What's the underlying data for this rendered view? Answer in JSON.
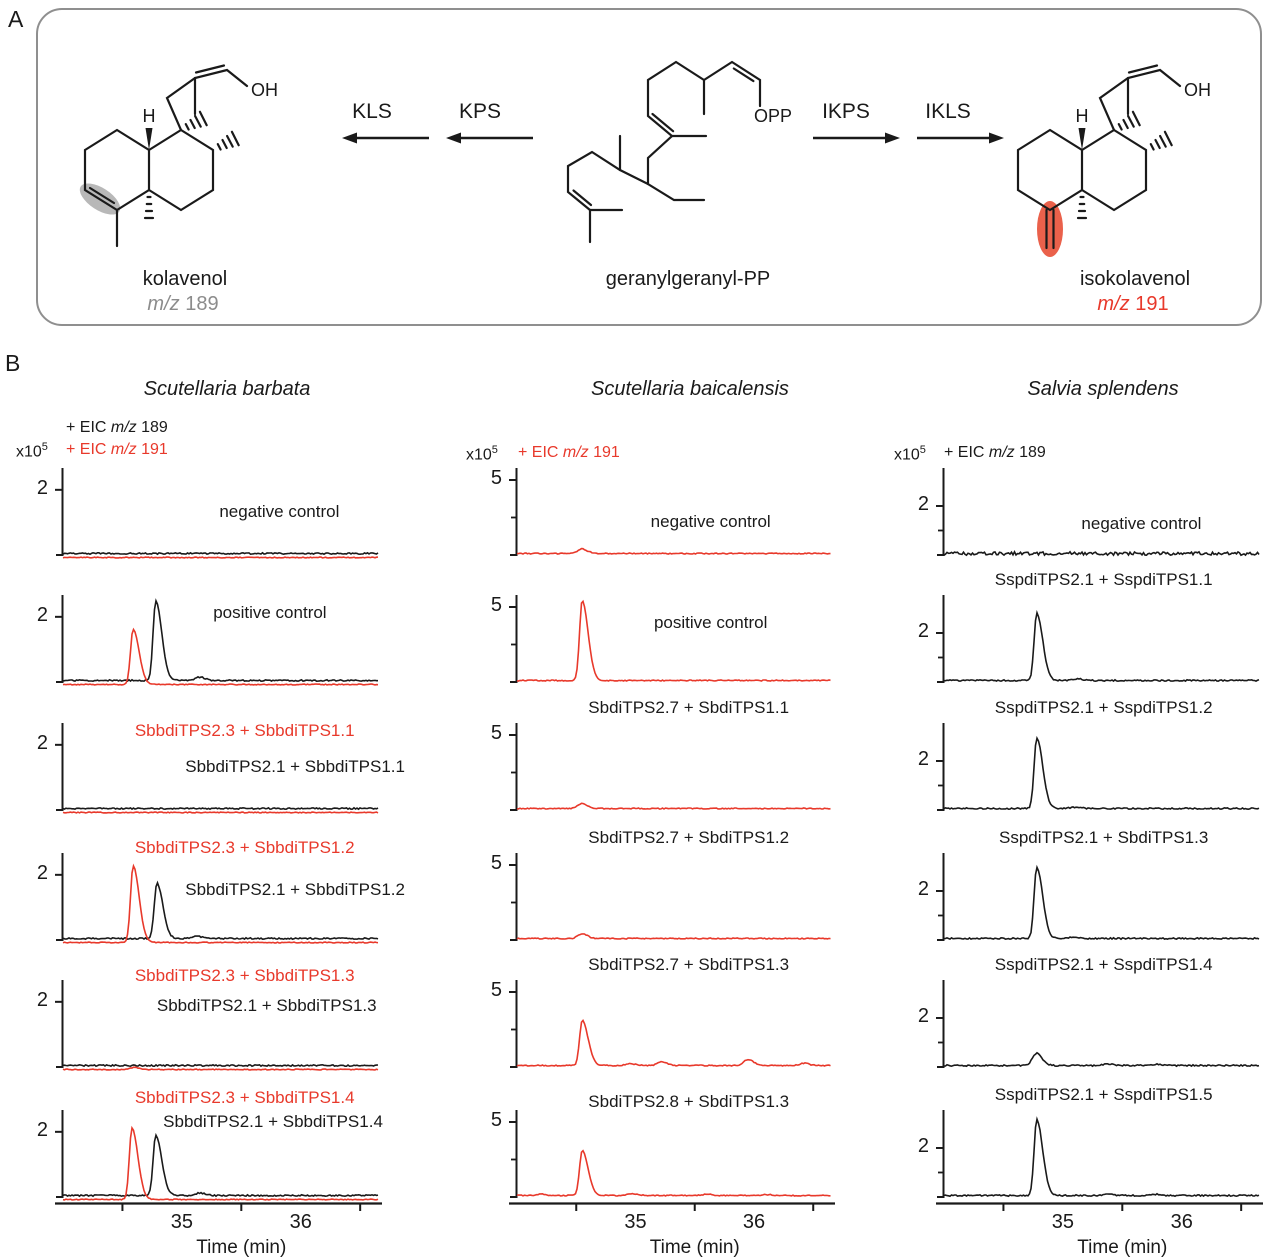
{
  "figure": {
    "panel_a_letter": "A",
    "panel_b_letter": "B"
  },
  "colors": {
    "red": "#e8392b",
    "black": "#1a1a1a",
    "gray_text": "#8c8c8c",
    "highlight_red": "#e8543c",
    "highlight_gray": "#b0b0b0",
    "box_border": "#8f8f8f"
  },
  "scheme": {
    "arrows": [
      {
        "label": "KLS",
        "dir": "left"
      },
      {
        "label": "KPS",
        "dir": "left"
      },
      {
        "label": "IKPS",
        "dir": "right"
      },
      {
        "label": "IKLS",
        "dir": "right"
      }
    ],
    "kolavenol": {
      "name": "kolavenol",
      "mz_prefix": "m/z",
      "mz_value": "189",
      "h_label": "H",
      "oh_label": "OH"
    },
    "ggpp": {
      "name": "geranylgeranyl-PP",
      "opp_label": "OPP"
    },
    "isokolavenol": {
      "name": "isokolavenol",
      "mz_prefix": "m/z",
      "mz_value": "191",
      "h_label": "H",
      "oh_label": "OH"
    }
  },
  "chart_data": {
    "type": "line",
    "xlabel": "Time (min)",
    "x_range": [
      34.0,
      36.65
    ],
    "xticks": [
      35,
      36
    ],
    "minor_xticks": [
      34.5,
      35.5,
      36.5
    ],
    "y_unit_note": "intensity x10^5",
    "columns": [
      {
        "species": "Scutellaria barbata",
        "scale": {
          "base": "x10",
          "exp": "5"
        },
        "legend": [
          {
            "pre": "+ EIC ",
            "mid": "m/z",
            "num": " 189",
            "color": "black"
          },
          {
            "pre": "+ EIC ",
            "mid": "m/z",
            "num": " 191",
            "color": "red"
          }
        ],
        "ymax": 2.67,
        "yticks": [
          {
            "value": 2,
            "label": "2"
          }
        ],
        "minor_yticks": [],
        "panels": [
          {
            "labels": [
              {
                "text": "negative control",
                "color": "black",
                "cx": 0.69,
                "dy": 34
              }
            ],
            "traces": [
              {
                "color": "black",
                "noise": 0.7,
                "peaks": []
              },
              {
                "color": "red",
                "noise": 0.45,
                "offset": 4,
                "peaks": []
              }
            ]
          },
          {
            "labels": [
              {
                "text": "positive control",
                "color": "black",
                "cx": 0.66,
                "dy": 8
              }
            ],
            "traces": [
              {
                "color": "black",
                "noise": 0.7,
                "peaks": [
                  [
                    34.78,
                    2.45
                  ],
                  [
                    35.15,
                    0.1
                  ]
                ]
              },
              {
                "color": "red",
                "noise": 0.45,
                "offset": 4,
                "peaks": [
                  [
                    34.59,
                    1.7
                  ]
                ]
              }
            ]
          },
          {
            "labels": [
              {
                "text": "SbbdiTPS2.3 + SbbdiTPS1.1",
                "color": "red",
                "cx": 0.58,
                "dy": -2
              },
              {
                "text": "SbbdiTPS2.1 + SbbdiTPS1.1",
                "color": "black",
                "cx": 0.74,
                "dy": 34
              }
            ],
            "traces": [
              {
                "color": "black",
                "noise": 0.7,
                "peaks": []
              },
              {
                "color": "red",
                "noise": 0.45,
                "offset": 4,
                "peaks": []
              }
            ]
          },
          {
            "labels": [
              {
                "text": "SbbdiTPS2.3 + SbbdiTPS1.2",
                "color": "red",
                "cx": 0.58,
                "dy": -15
              },
              {
                "text": "SbbdiTPS2.1 + SbbdiTPS1.2",
                "color": "black",
                "cx": 0.74,
                "dy": 27
              }
            ],
            "traces": [
              {
                "color": "black",
                "noise": 0.7,
                "peaks": [
                  [
                    34.79,
                    1.7
                  ],
                  [
                    35.12,
                    0.07
                  ]
                ]
              },
              {
                "color": "red",
                "noise": 0.45,
                "offset": 4,
                "peaks": [
                  [
                    34.59,
                    2.35
                  ]
                ]
              }
            ]
          },
          {
            "labels": [
              {
                "text": "SbbdiTPS2.3 + SbbdiTPS1.3",
                "color": "red",
                "cx": 0.58,
                "dy": -14
              },
              {
                "text": "SbbdiTPS2.1 + SbbdiTPS1.3",
                "color": "black",
                "cx": 0.65,
                "dy": 16
              }
            ],
            "traces": [
              {
                "color": "black",
                "noise": 0.7,
                "peaks": []
              },
              {
                "color": "red",
                "noise": 0.45,
                "offset": 4,
                "peaks": [
                  [
                    34.6,
                    0.06
                  ]
                ]
              }
            ]
          },
          {
            "labels": [
              {
                "text": "SbbdiTPS2.3 + SbbdiTPS1.4",
                "color": "red",
                "cx": 0.58,
                "dy": -22
              },
              {
                "text": "SbbdiTPS2.1 + SbbdiTPS1.4",
                "color": "black",
                "cx": 0.67,
                "dy": 2
              }
            ],
            "traces": [
              {
                "color": "black",
                "noise": 0.7,
                "peaks": [
                  [
                    34.78,
                    1.85
                  ],
                  [
                    35.15,
                    0.08
                  ]
                ]
              },
              {
                "color": "red",
                "noise": 0.45,
                "offset": 4,
                "peaks": [
                  [
                    34.58,
                    2.2
                  ]
                ]
              }
            ]
          }
        ]
      },
      {
        "species": "Scutellaria baicalensis",
        "scale": {
          "base": "x10",
          "exp": "5"
        },
        "legend": [
          {
            "pre": "+ EIC ",
            "mid": "m/z",
            "num": " 191",
            "color": "red"
          }
        ],
        "ymax": 5.8,
        "yticks": [
          {
            "value": 5,
            "label": "5"
          }
        ],
        "minor_yticks": [
          2.5
        ],
        "panels": [
          {
            "labels": [
              {
                "text": "negative control",
                "color": "black",
                "cx": 0.62,
                "dy": 44
              }
            ],
            "traces": [
              {
                "color": "red",
                "noise": 0.5,
                "peaks": [
                  [
                    34.55,
                    0.3
                  ]
                ]
              }
            ]
          },
          {
            "labels": [
              {
                "text": "positive control",
                "color": "black",
                "cx": 0.62,
                "dy": 18
              }
            ],
            "traces": [
              {
                "color": "red",
                "noise": 0.5,
                "peaks": [
                  [
                    34.55,
                    5.3
                  ]
                ]
              }
            ]
          },
          {
            "labels": [
              {
                "text": "SbdiTPS2.7 + SbdiTPS1.1",
                "color": "black",
                "cx": 0.55,
                "dy": -25
              }
            ],
            "traces": [
              {
                "color": "red",
                "noise": 0.5,
                "peaks": [
                  [
                    34.55,
                    0.33
                  ]
                ]
              }
            ]
          },
          {
            "labels": [
              {
                "text": "SbdiTPS2.7 + SbdiTPS1.2",
                "color": "black",
                "cx": 0.55,
                "dy": -25
              }
            ],
            "traces": [
              {
                "color": "red",
                "noise": 0.5,
                "peaks": [
                  [
                    34.55,
                    0.3
                  ]
                ]
              }
            ]
          },
          {
            "labels": [
              {
                "text": "SbdiTPS2.7 + SbdiTPS1.3",
                "color": "black",
                "cx": 0.55,
                "dy": -25
              }
            ],
            "traces": [
              {
                "color": "red",
                "noise": 0.5,
                "peaks": [
                  [
                    34.55,
                    3.0
                  ],
                  [
                    34.95,
                    0.12
                  ],
                  [
                    35.22,
                    0.25
                  ],
                  [
                    35.95,
                    0.4
                  ],
                  [
                    36.42,
                    0.15
                  ]
                ]
              }
            ]
          },
          {
            "labels": [
              {
                "text": "SbdiTPS2.8 + SbdiTPS1.3",
                "color": "black",
                "cx": 0.55,
                "dy": -18
              }
            ],
            "traces": [
              {
                "color": "red",
                "noise": 0.5,
                "peaks": [
                  [
                    34.55,
                    3.0
                  ],
                  [
                    34.2,
                    0.1
                  ],
                  [
                    34.97,
                    0.12
                  ],
                  [
                    35.6,
                    0.08
                  ],
                  [
                    36.1,
                    0.06
                  ]
                ]
              }
            ]
          }
        ]
      },
      {
        "species": "Salvia splendens",
        "scale": {
          "base": "x10",
          "exp": "5"
        },
        "legend": [
          {
            "pre": "+ EIC ",
            "mid": "m/z",
            "num": " 189",
            "color": "black"
          }
        ],
        "ymax": 3.55,
        "yticks": [
          {
            "value": 2,
            "label": "2"
          }
        ],
        "minor_yticks": [
          1
        ],
        "panels": [
          {
            "labels": [
              {
                "text": "negative control",
                "color": "black",
                "cx": 0.63,
                "dy": 46
              }
            ],
            "traces": [
              {
                "color": "black",
                "noise": 1.7,
                "peaks": []
              }
            ]
          },
          {
            "labels": [
              {
                "text": "SspdiTPS2.1 + SspdiTPS1.1",
                "color": "black",
                "cx": 0.51,
                "dy": -25
              }
            ],
            "traces": [
              {
                "color": "black",
                "noise": 0.7,
                "peaks": [
                  [
                    34.78,
                    2.75
                  ],
                  [
                    35.12,
                    0.07
                  ]
                ]
              }
            ]
          },
          {
            "labels": [
              {
                "text": "SspdiTPS2.1 + SspdiTPS1.2",
                "color": "black",
                "cx": 0.51,
                "dy": -25
              }
            ],
            "traces": [
              {
                "color": "black",
                "noise": 0.7,
                "peaks": [
                  [
                    34.78,
                    2.9
                  ],
                  [
                    35.1,
                    0.06
                  ]
                ]
              }
            ]
          },
          {
            "labels": [
              {
                "text": "SspdiTPS2.1 + SbdiTPS1.3",
                "color": "black",
                "cx": 0.51,
                "dy": -25
              }
            ],
            "traces": [
              {
                "color": "black",
                "noise": 0.7,
                "peaks": [
                  [
                    34.78,
                    2.9
                  ],
                  [
                    35.1,
                    0.06
                  ]
                ]
              }
            ]
          },
          {
            "labels": [
              {
                "text": "SspdiTPS2.1 + SspdiTPS1.4",
                "color": "black",
                "cx": 0.51,
                "dy": -25
              }
            ],
            "traces": [
              {
                "color": "black",
                "noise": 0.7,
                "peaks": [
                  [
                    34.78,
                    0.5
                  ],
                  [
                    35.38,
                    0.06
                  ],
                  [
                    35.78,
                    0.05
                  ]
                ]
              }
            ]
          },
          {
            "labels": [
              {
                "text": "SspdiTPS2.1 + SspdiTPS1.5",
                "color": "black",
                "cx": 0.51,
                "dy": -25
              }
            ],
            "traces": [
              {
                "color": "black",
                "noise": 0.7,
                "peaks": [
                  [
                    34.78,
                    3.1
                  ],
                  [
                    35.38,
                    0.07
                  ],
                  [
                    35.78,
                    0.05
                  ]
                ]
              }
            ]
          }
        ]
      }
    ]
  }
}
